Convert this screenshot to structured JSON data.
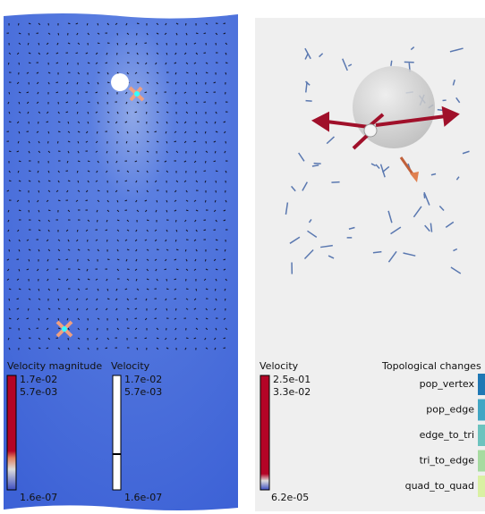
{
  "left_panel": {
    "colorbars": [
      {
        "title": "Velocity magnitude",
        "labels": [
          "1.7e-02",
          "5.7e-03",
          "1.6e-07"
        ]
      },
      {
        "title": "Velocity",
        "labels": [
          "1.7e-02",
          "5.7e-03",
          "1.6e-07"
        ]
      }
    ]
  },
  "right_panel": {
    "colorbar": {
      "title": "Velocity",
      "labels": [
        "2.5e-01",
        "3.3e-02",
        "6.2e-05"
      ]
    },
    "legend": {
      "title": "Topological changes",
      "items": [
        "pop_vertex",
        "pop_edge",
        "edge_to_tri",
        "tri_to_edge",
        "quad_to_quad"
      ]
    }
  }
}
